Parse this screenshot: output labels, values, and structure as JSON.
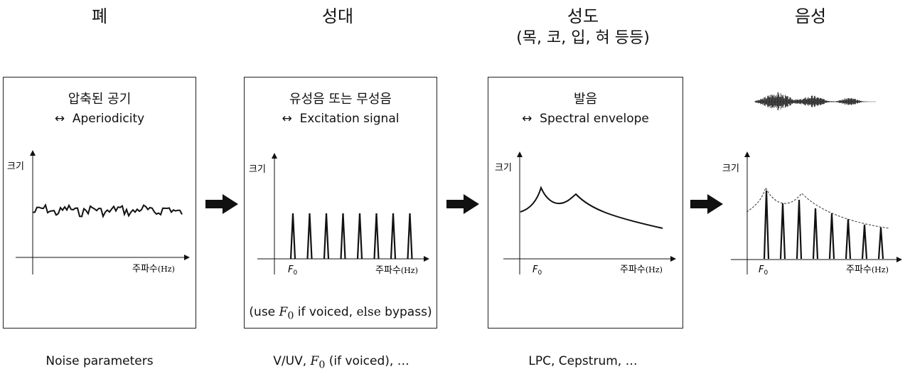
{
  "stages": {
    "lung": {
      "title": "폐"
    },
    "vocal_folds": {
      "title": "성대"
    },
    "vocal_tract": {
      "title": "성도",
      "subtitle": "(목, 코, 입, 혀 등등)"
    },
    "speech": {
      "title": "음성"
    }
  },
  "panels": {
    "lung": {
      "title": "압축된 공기",
      "desc_arrow": "↔",
      "desc": "Aperiodicity"
    },
    "vocal_folds": {
      "title": "유성음 또는 무성음",
      "desc_arrow": "↔",
      "desc": "Excitation signal",
      "note_pre": "(use ",
      "note_f": "F",
      "note_sub": "0",
      "note_mid": " if voiced, ",
      "note_else": "else",
      "note_post": " bypass)"
    },
    "vocal_tract": {
      "title": "발음",
      "desc_arrow": "↔",
      "desc": "Spectral envelope"
    }
  },
  "axes": {
    "y_label": "크기",
    "x_label": "주파수",
    "x_unit": "(Hz)",
    "f0_label": "F",
    "f0_sub": "0"
  },
  "bottom": {
    "lung": "Noise parameters",
    "vocal_folds_pre": "V/UV, ",
    "vocal_folds_f": "F",
    "vocal_folds_sub": "0",
    "vocal_folds_post": " (if voiced), …",
    "vocal_tract": "LPC, Cepstrum, …"
  },
  "colors": {
    "line": "#111111",
    "arrow": "#111111",
    "dashed": "#333333"
  },
  "icons": {
    "arrow": "right-arrow-icon",
    "waveform": "waveform-icon"
  }
}
